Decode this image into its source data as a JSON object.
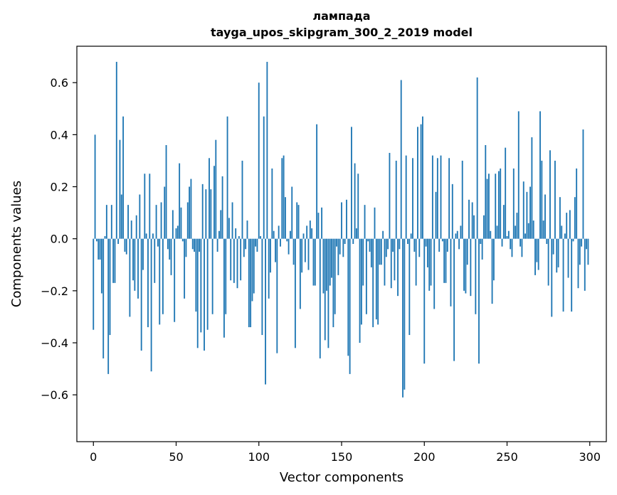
{
  "chart_data": {
    "type": "bar",
    "title": "лампада",
    "subtitle": "tayga_upos_skipgram_300_2_2019 model",
    "xlabel": "Vector components",
    "ylabel": "Components values",
    "xlim": [
      -10,
      310
    ],
    "ylim": [
      -0.78,
      0.74
    ],
    "xticks": [
      0,
      50,
      100,
      150,
      200,
      250,
      300
    ],
    "xtick_labels": [
      "0",
      "50",
      "100",
      "150",
      "200",
      "250",
      "300"
    ],
    "yticks": [
      -0.6,
      -0.4,
      -0.2,
      0.0,
      0.2,
      0.4,
      0.6
    ],
    "ytick_labels": [
      "−0.6",
      "−0.4",
      "−0.2",
      "0.0",
      "0.2",
      "0.4",
      "0.6"
    ],
    "bar_color": "#1f77b4",
    "grid": false,
    "legend": "none",
    "values": [
      -0.35,
      0.4,
      -0.01,
      -0.08,
      -0.08,
      -0.21,
      -0.46,
      0.01,
      0.13,
      -0.52,
      -0.37,
      0.13,
      -0.17,
      -0.17,
      0.68,
      -0.02,
      0.38,
      0.17,
      0.47,
      -0.05,
      -0.06,
      0.13,
      -0.3,
      0.07,
      -0.16,
      -0.2,
      0.09,
      -0.23,
      0.17,
      -0.43,
      -0.12,
      0.25,
      0.02,
      -0.34,
      0.25,
      -0.51,
      0.02,
      -0.17,
      0.13,
      -0.03,
      -0.33,
      0.14,
      -0.29,
      0.2,
      0.36,
      -0.04,
      -0.08,
      -0.14,
      0.11,
      -0.32,
      0.04,
      0.05,
      0.29,
      0.12,
      -0.01,
      -0.23,
      -0.07,
      0.14,
      0.2,
      0.23,
      -0.04,
      -0.05,
      -0.28,
      -0.42,
      -0.05,
      -0.36,
      0.21,
      -0.43,
      0.19,
      -0.35,
      0.31,
      0.19,
      -0.29,
      0.28,
      0.38,
      -0.05,
      0.03,
      0.11,
      0.24,
      -0.38,
      -0.29,
      0.47,
      0.08,
      -0.16,
      0.14,
      -0.17,
      0.04,
      -0.19,
      0.01,
      -0.16,
      0.3,
      -0.07,
      -0.04,
      0.07,
      -0.34,
      -0.34,
      -0.24,
      -0.21,
      -0.03,
      -0.05,
      0.6,
      0.01,
      -0.37,
      0.47,
      -0.56,
      0.68,
      -0.23,
      -0.13,
      0.27,
      0.03,
      -0.09,
      -0.44,
      0.05,
      -0.03,
      0.31,
      0.32,
      0.16,
      -0.01,
      -0.06,
      0.03,
      0.2,
      -0.1,
      -0.42,
      0.14,
      0.13,
      -0.27,
      -0.13,
      0.02,
      -0.09,
      0.05,
      -0.12,
      0.07,
      0.04,
      -0.18,
      -0.18,
      0.44,
      0.1,
      -0.46,
      0.12,
      -0.21,
      -0.39,
      -0.2,
      -0.42,
      -0.18,
      -0.15,
      -0.34,
      -0.29,
      -0.03,
      -0.14,
      -0.06,
      0.14,
      -0.07,
      -0.02,
      0.15,
      -0.45,
      -0.52,
      0.43,
      -0.02,
      0.29,
      0.04,
      0.25,
      -0.4,
      -0.33,
      -0.18,
      0.13,
      -0.29,
      -0.01,
      -0.05,
      -0.11,
      -0.34,
      0.12,
      -0.31,
      -0.33,
      -0.1,
      -0.1,
      0.03,
      -0.18,
      -0.07,
      -0.04,
      0.33,
      -0.19,
      -0.05,
      -0.16,
      0.3,
      -0.22,
      -0.04,
      0.61,
      -0.61,
      -0.58,
      0.32,
      -0.02,
      -0.37,
      0.02,
      0.31,
      -0.05,
      -0.18,
      0.43,
      -0.07,
      0.44,
      0.47,
      -0.48,
      -0.03,
      -0.11,
      -0.2,
      -0.18,
      0.32,
      -0.27,
      0.18,
      0.31,
      -0.05,
      0.32,
      -0.01,
      -0.17,
      -0.17,
      -0.05,
      0.31,
      -0.26,
      0.21,
      -0.47,
      0.02,
      0.03,
      -0.04,
      0.05,
      0.3,
      -0.2,
      -0.21,
      -0.1,
      0.15,
      -0.22,
      0.14,
      0.09,
      -0.29,
      0.62,
      -0.48,
      -0.02,
      -0.08,
      0.09,
      0.36,
      0.23,
      0.25,
      0.03,
      -0.25,
      -0.16,
      0.25,
      0.05,
      0.26,
      0.27,
      -0.03,
      0.13,
      0.35,
      0.01,
      0.03,
      -0.04,
      -0.07,
      0.27,
      0.05,
      0.1,
      0.49,
      -0.03,
      -0.07,
      0.22,
      0.02,
      0.18,
      0.06,
      0.2,
      0.39,
      0.07,
      -0.14,
      -0.09,
      -0.12,
      0.49,
      0.3,
      0.07,
      0.17,
      -0.02,
      -0.18,
      0.34,
      -0.3,
      -0.06,
      0.3,
      -0.13,
      -0.11,
      0.16,
      0.05,
      -0.28,
      0.02,
      0.1,
      -0.15,
      0.11,
      -0.28,
      -0.01,
      0.16,
      0.27,
      -0.19,
      -0.1,
      -0.03,
      0.42,
      -0.2,
      -0.04,
      -0.1
    ]
  }
}
